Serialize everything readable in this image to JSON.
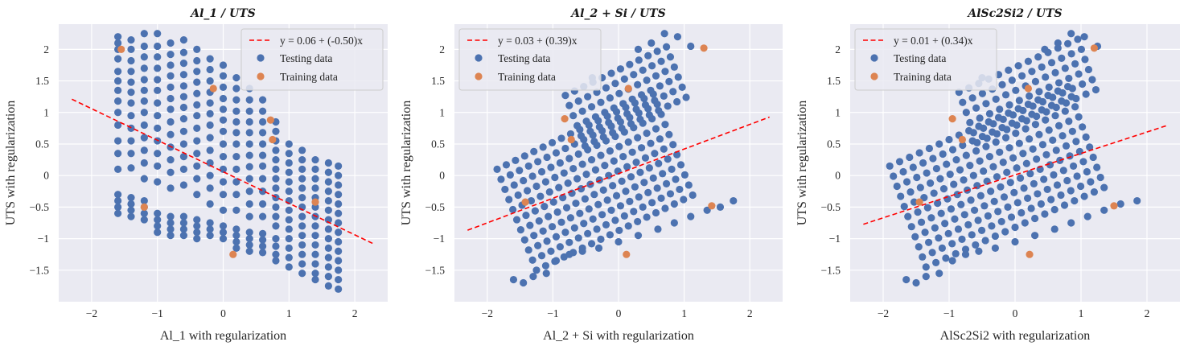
{
  "colors": {
    "background": "#eaeaf2",
    "grid": "#ffffff",
    "testing": "#4c72b0",
    "training": "#dd8452",
    "fit": "#ff0000"
  },
  "chart_data": [
    {
      "type": "scatter",
      "title": "Al_1 / UTS",
      "xlabel": "Al_1 with regularization",
      "ylabel": "UTS with regularization",
      "xlim": [
        -2.5,
        2.5
      ],
      "ylim": [
        -2.0,
        2.4
      ],
      "xticks": [
        -2,
        -1,
        0,
        1,
        2
      ],
      "yticks": [
        -1.5,
        -1.0,
        -0.5,
        0.0,
        0.5,
        1.0,
        1.5,
        2.0
      ],
      "grid": true,
      "legend_position": "top-right",
      "fit_line": {
        "label": "y = 0.06 + (-0.50)x",
        "intercept": 0.06,
        "slope": -0.5,
        "x_range": [
          -2.3,
          2.3
        ]
      },
      "series": [
        {
          "name": "Testing data",
          "columns": [
            {
              "x": -1.6,
              "ys": [
                2.2,
                2.1,
                2.0,
                1.85,
                1.65,
                1.5,
                1.35,
                1.18,
                1.0,
                0.8,
                0.55,
                0.35,
                0.1,
                -0.3,
                -0.4,
                -0.5,
                -0.6
              ]
            },
            {
              "x": -1.4,
              "ys": [
                2.15,
                2.0,
                1.82,
                1.65,
                1.48,
                1.32,
                1.15,
                0.95,
                0.75,
                0.55,
                0.35,
                0.12,
                -0.35,
                -0.45,
                -0.55,
                -0.65
              ]
            },
            {
              "x": -1.2,
              "ys": [
                2.25,
                2.05,
                1.88,
                1.7,
                1.52,
                1.35,
                1.18,
                1.0,
                0.8,
                0.6,
                0.4,
                0.2,
                -0.05,
                -0.4,
                -0.5,
                -0.6,
                -0.7
              ]
            },
            {
              "x": -1.0,
              "ys": [
                2.25,
                2.05,
                1.88,
                1.7,
                1.52,
                1.35,
                1.15,
                0.95,
                0.75,
                0.55,
                0.35,
                0.15,
                -0.1,
                -0.6,
                -0.7,
                -0.8,
                -0.9
              ]
            },
            {
              "x": -0.8,
              "ys": [
                2.1,
                1.92,
                1.75,
                1.58,
                1.4,
                1.22,
                1.05,
                0.85,
                0.65,
                0.45,
                0.25,
                0.05,
                -0.2,
                -0.65,
                -0.75,
                -0.85,
                -0.95
              ]
            },
            {
              "x": -0.6,
              "ys": [
                2.15,
                1.95,
                1.78,
                1.6,
                1.42,
                1.25,
                1.08,
                0.9,
                0.7,
                0.5,
                0.3,
                0.1,
                -0.15,
                -0.65,
                -0.75,
                -0.85,
                -0.95
              ]
            },
            {
              "x": -0.4,
              "ys": [
                2.0,
                1.82,
                1.65,
                1.48,
                1.3,
                1.12,
                0.95,
                0.75,
                0.55,
                0.35,
                0.15,
                -0.05,
                -0.3,
                -0.7,
                -0.8,
                -0.9,
                -1.0
              ]
            },
            {
              "x": -0.2,
              "ys": [
                1.85,
                1.68,
                1.5,
                1.32,
                1.15,
                0.98,
                0.8,
                0.6,
                0.4,
                0.2,
                0.0,
                -0.2,
                -0.45,
                -0.75,
                -0.85,
                -0.95
              ]
            },
            {
              "x": 0.0,
              "ys": [
                1.75,
                1.58,
                1.4,
                1.22,
                1.05,
                0.88,
                0.7,
                0.5,
                0.3,
                0.1,
                -0.1,
                -0.3,
                -0.55,
                -0.8,
                -0.9,
                -1.0
              ]
            },
            {
              "x": 0.2,
              "ys": [
                1.55,
                1.38,
                1.2,
                1.02,
                0.85,
                0.68,
                0.5,
                0.3,
                0.1,
                -0.1,
                -0.3,
                -0.55,
                -0.85,
                -0.95,
                -1.05,
                -1.15
              ]
            },
            {
              "x": 0.4,
              "ys": [
                1.38,
                1.2,
                1.02,
                0.85,
                0.68,
                0.5,
                0.32,
                0.14,
                -0.05,
                -0.25,
                -0.45,
                -0.65,
                -0.9,
                -1.0,
                -1.1,
                -1.2
              ]
            },
            {
              "x": 0.6,
              "ys": [
                1.2,
                1.02,
                0.85,
                0.68,
                0.5,
                0.32,
                0.15,
                -0.05,
                -0.25,
                -0.45,
                -0.65,
                -0.92,
                -1.02,
                -1.12,
                -1.22
              ]
            },
            {
              "x": 0.8,
              "ys": [
                0.85,
                0.7,
                0.55,
                0.4,
                0.25,
                0.1,
                -0.05,
                -0.2,
                -0.35,
                -0.5,
                -0.65,
                -0.8,
                -1.0,
                -1.12,
                -1.25,
                -1.35
              ]
            },
            {
              "x": 1.0,
              "ys": [
                0.5,
                0.35,
                0.2,
                0.05,
                -0.1,
                -0.25,
                -0.4,
                -0.55,
                -0.7,
                -0.85,
                -1.0,
                -1.15,
                -1.3,
                -1.45
              ]
            },
            {
              "x": 1.2,
              "ys": [
                0.4,
                0.25,
                0.1,
                -0.05,
                -0.2,
                -0.35,
                -0.5,
                -0.65,
                -0.8,
                -0.95,
                -1.1,
                -1.25,
                -1.4,
                -1.55
              ]
            },
            {
              "x": 1.4,
              "ys": [
                0.25,
                0.1,
                -0.05,
                -0.2,
                -0.35,
                -0.5,
                -0.65,
                -0.8,
                -0.95,
                -1.1,
                -1.25,
                -1.4,
                -1.55,
                -1.65
              ]
            },
            {
              "x": 1.6,
              "ys": [
                0.2,
                0.05,
                -0.1,
                -0.25,
                -0.4,
                -0.55,
                -0.7,
                -0.85,
                -1.0,
                -1.15,
                -1.3,
                -1.45,
                -1.6,
                -1.75
              ]
            },
            {
              "x": 1.75,
              "ys": [
                0.15,
                0.0,
                -0.15,
                -0.3,
                -0.45,
                -0.6,
                -0.75,
                -0.9,
                -1.05,
                -1.2,
                -1.35,
                -1.5,
                -1.65,
                -1.8
              ]
            }
          ]
        },
        {
          "name": "Training data",
          "points": [
            [
              -1.55,
              2.0
            ],
            [
              -0.15,
              1.38
            ],
            [
              0.72,
              0.88
            ],
            [
              0.75,
              0.57
            ],
            [
              -1.2,
              -0.5
            ],
            [
              1.4,
              -0.42
            ],
            [
              0.15,
              -1.25
            ]
          ]
        }
      ]
    },
    {
      "type": "scatter",
      "title": "Al_2 + Si / UTS",
      "xlabel": "Al_2 + Si with regularization",
      "ylabel": "UTS with regularization",
      "xlim": [
        -2.5,
        2.5
      ],
      "ylim": [
        -2.0,
        2.4
      ],
      "xticks": [
        -2,
        -1,
        0,
        1,
        2
      ],
      "yticks": [
        -1.5,
        -1.0,
        -0.5,
        0.0,
        0.5,
        1.0,
        1.5,
        2.0
      ],
      "grid": true,
      "legend_position": "top-left",
      "fit_line": {
        "label": "y = 0.03 + (0.39)x",
        "intercept": 0.03,
        "slope": 0.39,
        "x_range": [
          -2.3,
          2.3
        ]
      },
      "grid_cloud": {
        "origin": [
          -1.85,
          0.1
        ],
        "u": [
          0.14,
          0.07
        ],
        "v": [
          0.06,
          -0.16
        ],
        "i_range": [
          0,
          18
        ],
        "j_range": [
          0,
          11
        ],
        "upper_shift": [
          0.2,
          0.75
        ],
        "upper_i_min": 6,
        "upper_j_max": 6
      },
      "series": [
        {
          "name": "Testing data",
          "points": [
            [
              -1.6,
              -1.65
            ],
            [
              -1.45,
              -1.7
            ],
            [
              -1.3,
              -1.6
            ],
            [
              -1.1,
              -1.55
            ],
            [
              -0.95,
              -1.35
            ],
            [
              -0.75,
              -1.25
            ],
            [
              -0.55,
              -1.2
            ],
            [
              -0.3,
              -1.15
            ],
            [
              0.0,
              -1.05
            ],
            [
              0.3,
              -0.95
            ],
            [
              0.6,
              -0.85
            ],
            [
              0.85,
              -0.75
            ],
            [
              1.1,
              -0.65
            ],
            [
              1.35,
              -0.55
            ],
            [
              1.55,
              -0.5
            ],
            [
              1.75,
              -0.4
            ],
            [
              0.3,
              2.0
            ],
            [
              0.5,
              2.1
            ],
            [
              0.7,
              2.25
            ],
            [
              0.9,
              2.2
            ],
            [
              1.1,
              2.05
            ],
            [
              -0.4,
              1.55
            ]
          ]
        },
        {
          "name": "Training data",
          "points": [
            [
              -0.82,
              0.9
            ],
            [
              -0.72,
              0.57
            ],
            [
              0.15,
              1.38
            ],
            [
              1.3,
              2.02
            ],
            [
              -1.42,
              -0.42
            ],
            [
              1.42,
              -0.48
            ],
            [
              0.12,
              -1.25
            ]
          ]
        }
      ]
    },
    {
      "type": "scatter",
      "title": "AlSc2Si2 / UTS",
      "xlabel": "AlSc2Si2 with regularization",
      "ylabel": "UTS with regularization",
      "xlim": [
        -2.5,
        2.5
      ],
      "ylim": [
        -2.0,
        2.4
      ],
      "xticks": [
        -2,
        -1,
        0,
        1,
        2
      ],
      "yticks": [
        -1.5,
        -1.0,
        -0.5,
        0.0,
        0.5,
        1.0,
        1.5,
        2.0
      ],
      "grid": true,
      "legend_position": "top-left",
      "fit_line": {
        "label": "y = 0.01 + (0.34)x",
        "intercept": 0.01,
        "slope": 0.34,
        "x_range": [
          -2.3,
          2.3
        ]
      },
      "grid_cloud": {
        "origin": [
          -1.9,
          0.15
        ],
        "u": [
          0.15,
          0.07
        ],
        "v": [
          0.055,
          -0.16
        ],
        "i_range": [
          0,
          19
        ],
        "j_range": [
          0,
          11
        ],
        "upper_shift": [
          0.15,
          0.75
        ],
        "upper_i_min": 6,
        "upper_j_max": 6
      },
      "series": [
        {
          "name": "Testing data",
          "points": [
            [
              -1.65,
              -1.65
            ],
            [
              -1.5,
              -1.7
            ],
            [
              -1.35,
              -1.6
            ],
            [
              -1.15,
              -1.55
            ],
            [
              -0.95,
              -1.35
            ],
            [
              -0.75,
              -1.25
            ],
            [
              -0.55,
              -1.2
            ],
            [
              -0.3,
              -1.15
            ],
            [
              0.0,
              -1.05
            ],
            [
              0.3,
              -0.95
            ],
            [
              0.6,
              -0.85
            ],
            [
              0.85,
              -0.75
            ],
            [
              1.1,
              -0.65
            ],
            [
              1.35,
              -0.55
            ],
            [
              1.6,
              -0.45
            ],
            [
              1.85,
              -0.4
            ],
            [
              0.45,
              2.0
            ],
            [
              0.65,
              2.1
            ],
            [
              0.85,
              2.25
            ],
            [
              1.05,
              2.2
            ],
            [
              1.25,
              2.05
            ],
            [
              -0.5,
              1.55
            ]
          ]
        },
        {
          "name": "Training data",
          "points": [
            [
              -0.95,
              0.9
            ],
            [
              -0.8,
              0.57
            ],
            [
              0.2,
              1.38
            ],
            [
              1.2,
              2.02
            ],
            [
              -1.45,
              -0.42
            ],
            [
              1.5,
              -0.48
            ],
            [
              0.22,
              -1.25
            ]
          ]
        }
      ]
    }
  ]
}
